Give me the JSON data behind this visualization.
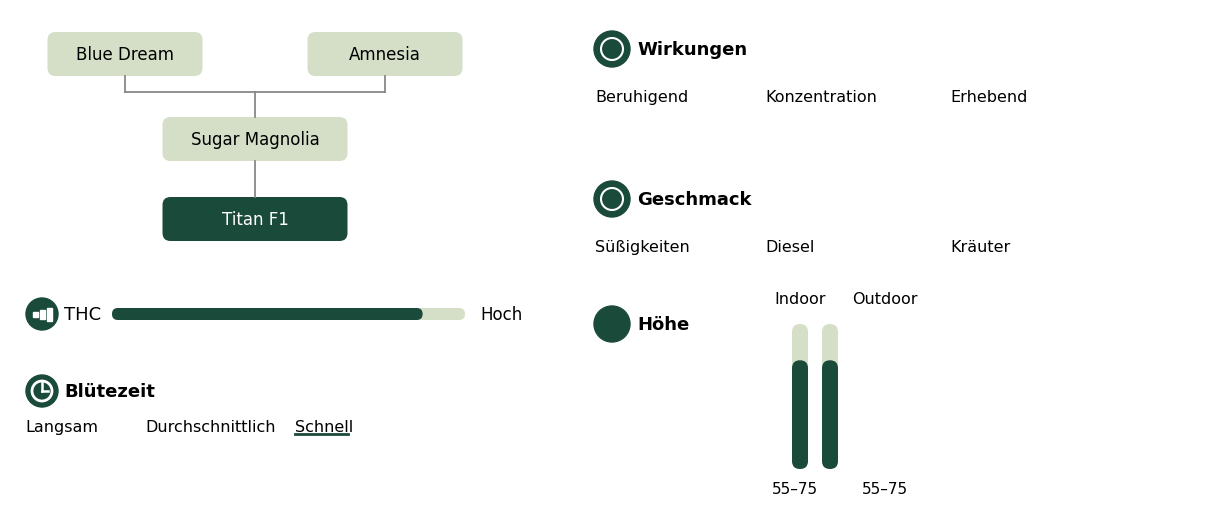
{
  "bg_color": "#ffffff",
  "dark_green": "#1a4a3a",
  "light_green_box": "#d5dfc8",
  "light_green_bar": "#d5dfc8",
  "line_color": "#888888",
  "bd_label": "Blue Dream",
  "am_label": "Amnesia",
  "sm_label": "Sugar Magnolia",
  "tf_label": "Titan F1",
  "thc_label": "THC",
  "thc_value_label": "Hoch",
  "thc_fill": 0.88,
  "bloom_label": "Blütezeit",
  "bloom_options": [
    "Langsam",
    "Durchschnittlich",
    "Schnell"
  ],
  "bloom_active": 2,
  "effects_label": "Wirkungen",
  "effects": [
    "Beruhigend",
    "Konzentration",
    "Erhebend"
  ],
  "taste_label": "Geschmack",
  "tastes": [
    "Süßigkeiten",
    "Diesel",
    "Kräuter"
  ],
  "height_label": "Höhe",
  "indoor_label": "Indoor",
  "outdoor_label": "Outdoor",
  "indoor_range": "55–75",
  "outdoor_range": "55–75"
}
